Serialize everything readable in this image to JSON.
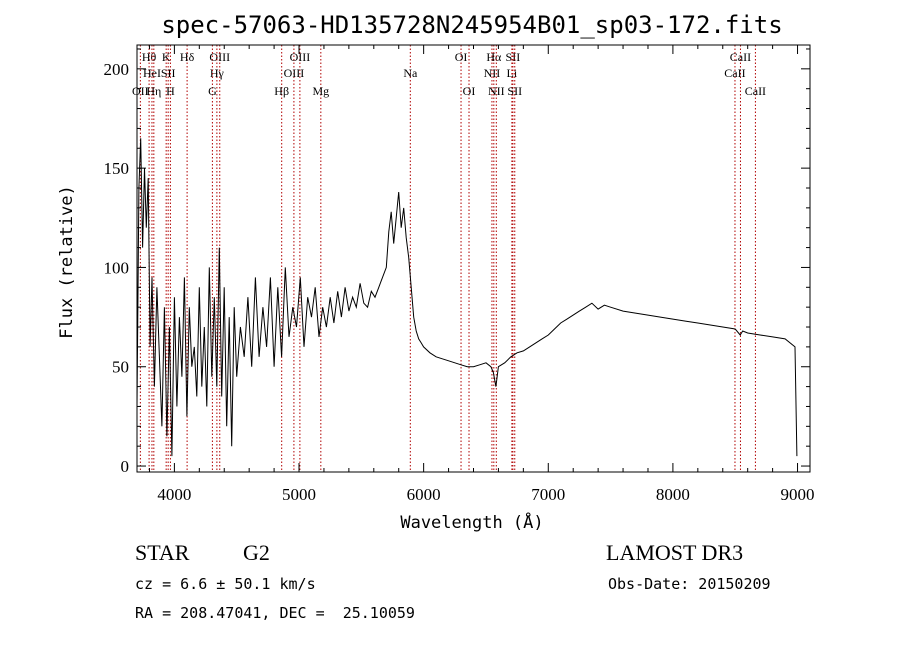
{
  "chart_data": {
    "type": "line",
    "title": "spec-57063-HD135728N245954B01_sp03-172.fits",
    "xlabel": "Wavelength (Å)",
    "ylabel": "Flux (relative)",
    "xlim": [
      3700,
      9100
    ],
    "ylim": [
      -3,
      212
    ],
    "xticks": [
      4000,
      5000,
      6000,
      7000,
      8000,
      9000
    ],
    "yticks": [
      0,
      50,
      100,
      150,
      200
    ],
    "series": [
      {
        "name": "spectrum",
        "x": [
          3700,
          3715,
          3730,
          3745,
          3760,
          3775,
          3790,
          3805,
          3820,
          3840,
          3860,
          3880,
          3900,
          3920,
          3940,
          3960,
          3980,
          4000,
          4020,
          4040,
          4060,
          4080,
          4100,
          4120,
          4140,
          4160,
          4180,
          4200,
          4220,
          4240,
          4260,
          4280,
          4300,
          4320,
          4340,
          4360,
          4380,
          4400,
          4420,
          4440,
          4460,
          4480,
          4500,
          4530,
          4560,
          4590,
          4620,
          4650,
          4680,
          4710,
          4740,
          4770,
          4800,
          4830,
          4860,
          4890,
          4920,
          4950,
          4980,
          5010,
          5040,
          5070,
          5100,
          5130,
          5160,
          5190,
          5220,
          5250,
          5280,
          5310,
          5340,
          5370,
          5400,
          5430,
          5460,
          5490,
          5520,
          5550,
          5580,
          5610,
          5640,
          5670,
          5700,
          5720,
          5740,
          5760,
          5780,
          5800,
          5820,
          5840,
          5860,
          5880,
          5900,
          5920,
          5940,
          5960,
          5980,
          6000,
          6050,
          6100,
          6150,
          6200,
          6250,
          6300,
          6350,
          6400,
          6450,
          6500,
          6540,
          6560,
          6580,
          6600,
          6650,
          6700,
          6750,
          6800,
          6850,
          6900,
          6950,
          7000,
          7050,
          7100,
          7150,
          7200,
          7250,
          7300,
          7350,
          7400,
          7450,
          7500,
          7600,
          7700,
          7800,
          7900,
          8000,
          8100,
          8200,
          8300,
          8400,
          8500,
          8540,
          8560,
          8600,
          8700,
          8800,
          8900,
          8980,
          8995
        ],
        "values": [
          30,
          140,
          165,
          110,
          150,
          120,
          145,
          60,
          95,
          40,
          90,
          55,
          20,
          80,
          15,
          70,
          5,
          85,
          30,
          75,
          45,
          95,
          25,
          80,
          50,
          60,
          35,
          90,
          40,
          70,
          30,
          100,
          45,
          85,
          40,
          110,
          35,
          90,
          20,
          75,
          10,
          80,
          45,
          70,
          55,
          85,
          50,
          95,
          55,
          80,
          60,
          95,
          50,
          90,
          55,
          100,
          65,
          80,
          70,
          95,
          60,
          85,
          75,
          90,
          65,
          80,
          70,
          85,
          72,
          88,
          75,
          90,
          78,
          85,
          80,
          92,
          82,
          80,
          88,
          85,
          90,
          95,
          100,
          118,
          128,
          112,
          125,
          138,
          120,
          130,
          115,
          105,
          90,
          75,
          68,
          64,
          62,
          60,
          57,
          55,
          54,
          53,
          52,
          51,
          50,
          50,
          51,
          52,
          50,
          47,
          40,
          50,
          52,
          55,
          57,
          58,
          60,
          62,
          64,
          66,
          69,
          72,
          74,
          76,
          78,
          80,
          82,
          79,
          81,
          80,
          78,
          77,
          76,
          75,
          74,
          73,
          72,
          71,
          70,
          69,
          66,
          68,
          67,
          66,
          65,
          64,
          60,
          5
        ]
      }
    ],
    "line_markers": [
      {
        "label": "OII",
        "x": 3727,
        "row": 3
      },
      {
        "label": "Hθ",
        "x": 3797,
        "row": 1
      },
      {
        "label": "HeI",
        "x": 3820,
        "row": 2
      },
      {
        "label": "Hη",
        "x": 3835,
        "row": 3
      },
      {
        "label": "K",
        "x": 3934,
        "row": 1
      },
      {
        "label": "SII",
        "x": 3950,
        "row": 2
      },
      {
        "label": "H",
        "x": 3968,
        "row": 3
      },
      {
        "label": "Hδ",
        "x": 4102,
        "row": 1
      },
      {
        "label": "OIII",
        "x": 4364,
        "row": 1
      },
      {
        "label": "Hγ",
        "x": 4341,
        "row": 2
      },
      {
        "label": "G",
        "x": 4305,
        "row": 3
      },
      {
        "label": "Hβ",
        "x": 4861,
        "row": 3
      },
      {
        "label": "OIII",
        "x": 5007,
        "row": 1
      },
      {
        "label": "OIII",
        "x": 4959,
        "row": 2
      },
      {
        "label": "Mg",
        "x": 5175,
        "row": 3
      },
      {
        "label": "Na",
        "x": 5893,
        "row": 2
      },
      {
        "label": "OI",
        "x": 6300,
        "row": 1
      },
      {
        "label": "OI",
        "x": 6364,
        "row": 3
      },
      {
        "label": "Hα",
        "x": 6563,
        "row": 1
      },
      {
        "label": "NII",
        "x": 6548,
        "row": 2
      },
      {
        "label": "NII",
        "x": 6583,
        "row": 3
      },
      {
        "label": "SII",
        "x": 6716,
        "row": 1
      },
      {
        "label": "Li",
        "x": 6708,
        "row": 2
      },
      {
        "label": "SII",
        "x": 6731,
        "row": 3
      },
      {
        "label": "CaII",
        "x": 8542,
        "row": 1
      },
      {
        "label": "CaII",
        "x": 8498,
        "row": 2
      },
      {
        "label": "CaII",
        "x": 8662,
        "row": 3
      }
    ]
  },
  "info": {
    "object_type": "STAR",
    "subclass": "G2",
    "survey": "LAMOST DR3",
    "cz": "cz = 6.6 ± 50.1 km/s",
    "obs_date": "Obs-Date: 20150209",
    "coords": "RA = 208.47041, DEC =  25.10059"
  },
  "colors": {
    "spectrum": "#000000",
    "marker": "#b00000",
    "axis": "#000000"
  }
}
